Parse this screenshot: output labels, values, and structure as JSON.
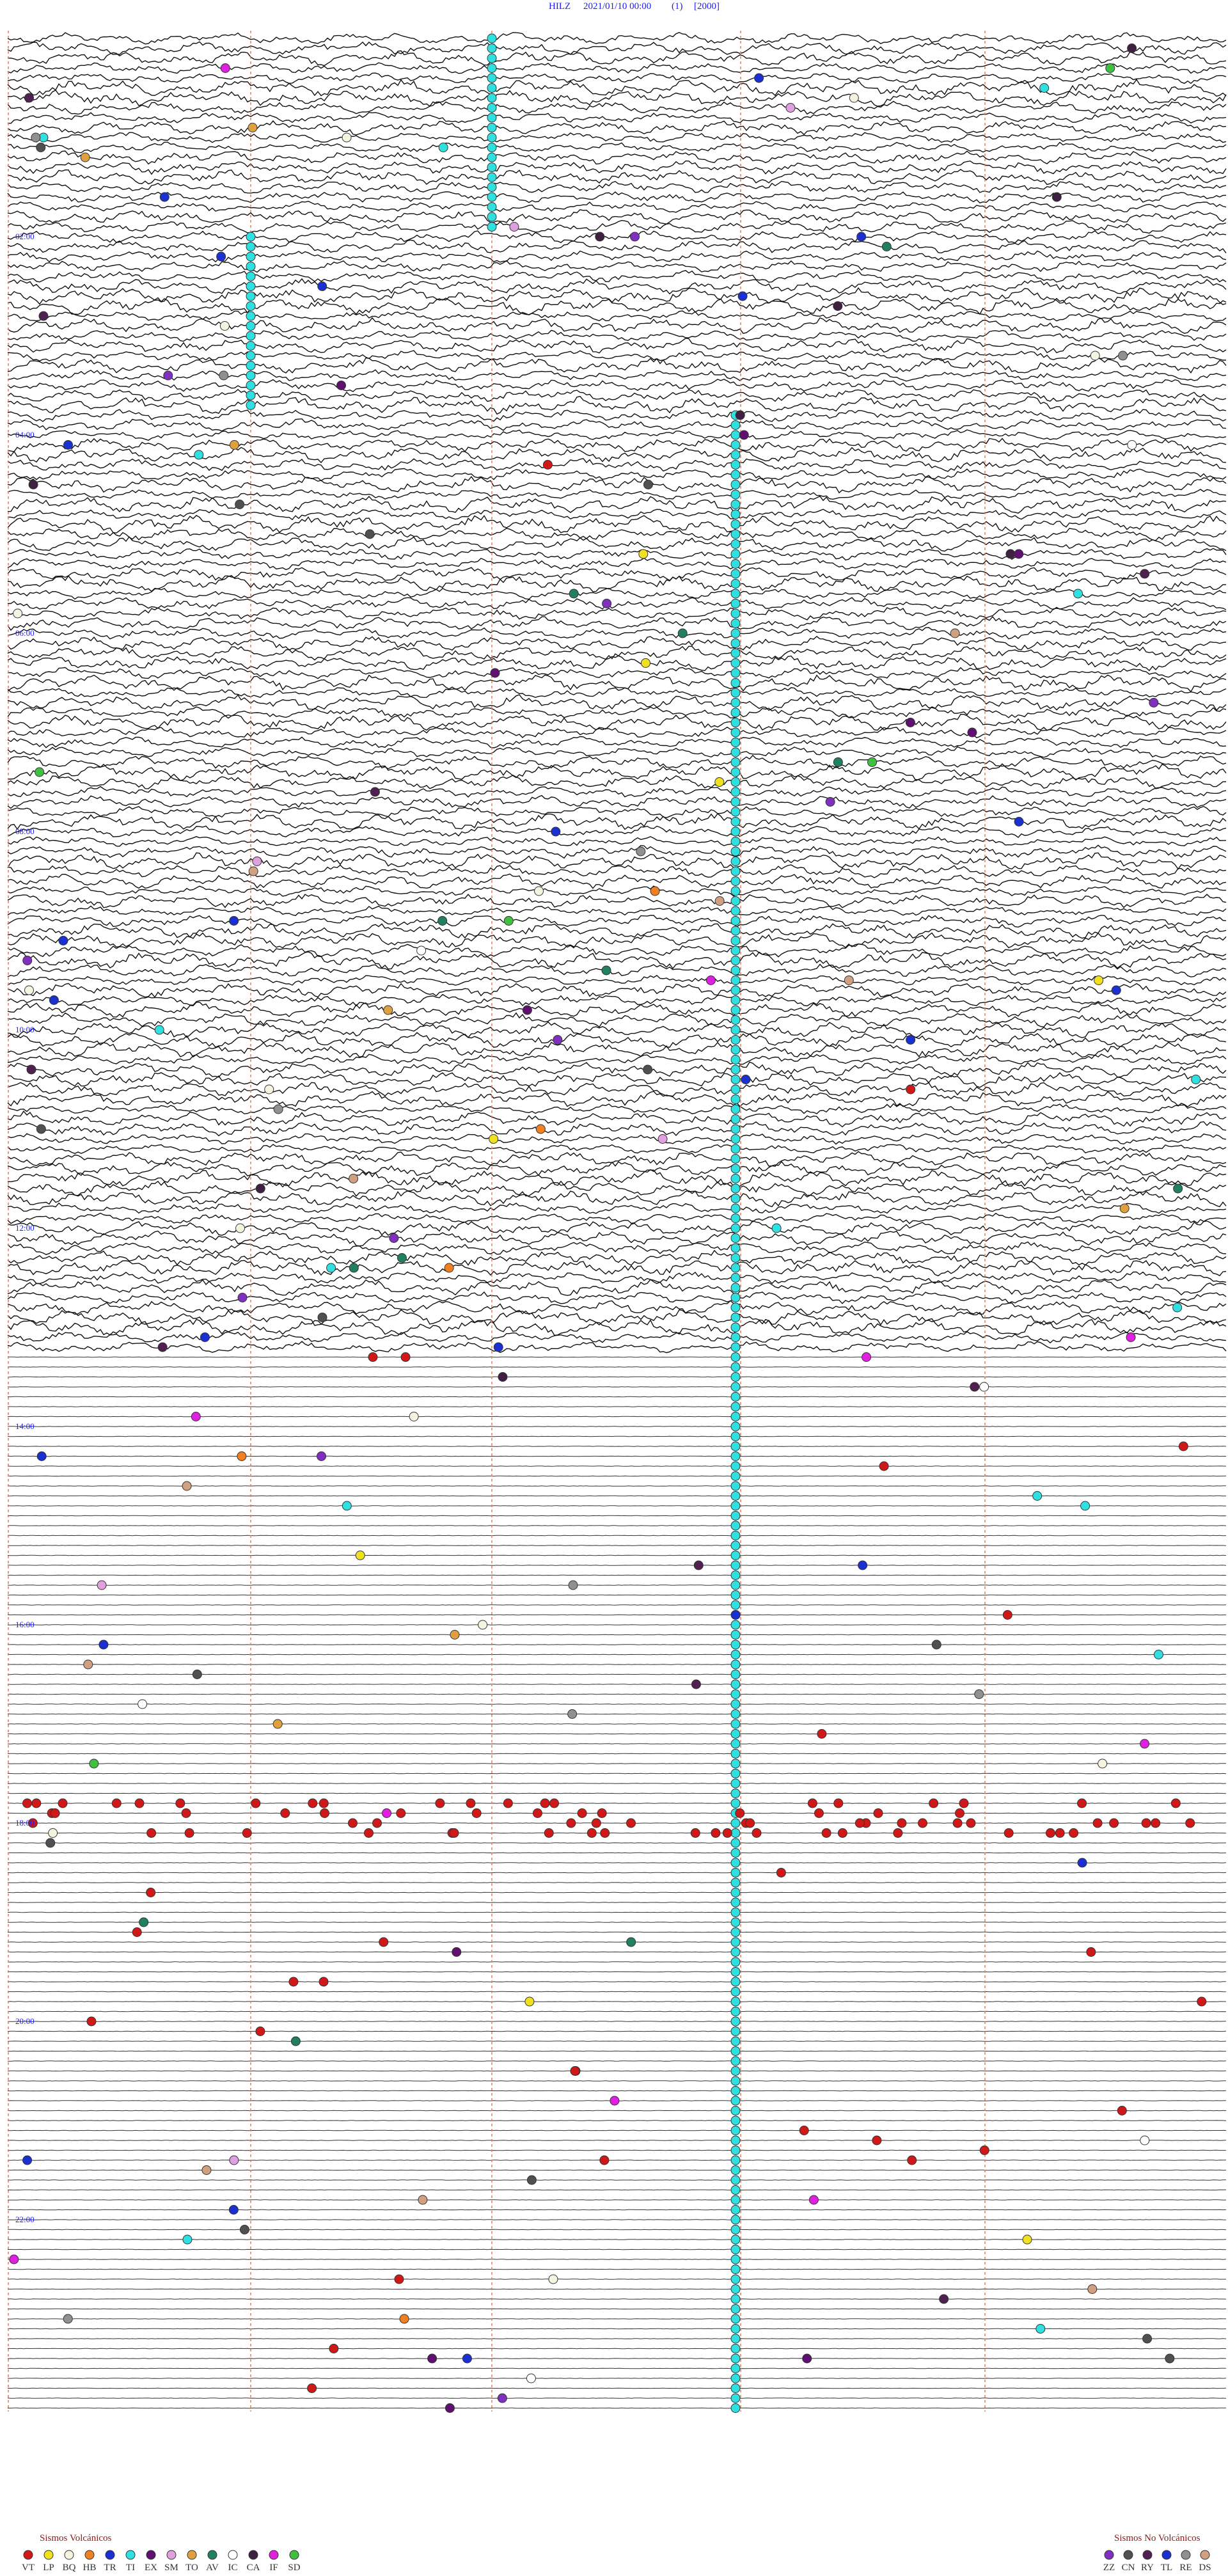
{
  "header": {
    "station": "HILZ",
    "datetime": "2021/01/10 00:00",
    "component": "(1)",
    "scale": "[2000]"
  },
  "time_labels": [
    "02:00",
    "04:00",
    "06:00",
    "08:00",
    "10:00",
    "12:00",
    "14:00",
    "16:00",
    "18:00",
    "20:00",
    "22:00"
  ],
  "legend": {
    "volcanic": {
      "title": "Sismos Volcánicos",
      "items": [
        {
          "code": "VT",
          "color": "#d01818"
        },
        {
          "code": "LP",
          "color": "#f0e020"
        },
        {
          "code": "BQ",
          "color": "#f4f4e0"
        },
        {
          "code": "HB",
          "color": "#f08020"
        },
        {
          "code": "TR",
          "color": "#1a30d0"
        },
        {
          "code": "TI",
          "color": "#30e0e0"
        },
        {
          "code": "EX",
          "color": "#601070"
        },
        {
          "code": "SM",
          "color": "#e0a0e0"
        },
        {
          "code": "TO",
          "color": "#e0a040"
        },
        {
          "code": "AV",
          "color": "#208060"
        },
        {
          "code": "IC",
          "color": "#ffffff"
        },
        {
          "code": "CA",
          "color": "#402040"
        },
        {
          "code": "IF",
          "color": "#e020e0"
        },
        {
          "code": "SD",
          "color": "#40c040"
        }
      ]
    },
    "non_volcanic": {
      "title": "Sismos No Volcánicos",
      "items": [
        {
          "code": "ZZ",
          "color": "#8030c0"
        },
        {
          "code": "CN",
          "color": "#505050"
        },
        {
          "code": "RY",
          "color": "#502050"
        },
        {
          "code": "TL",
          "color": "#1a30d0"
        },
        {
          "code": "RE",
          "color": "#909090"
        },
        {
          "code": "DS",
          "color": "#d0a080"
        }
      ]
    }
  }
}
